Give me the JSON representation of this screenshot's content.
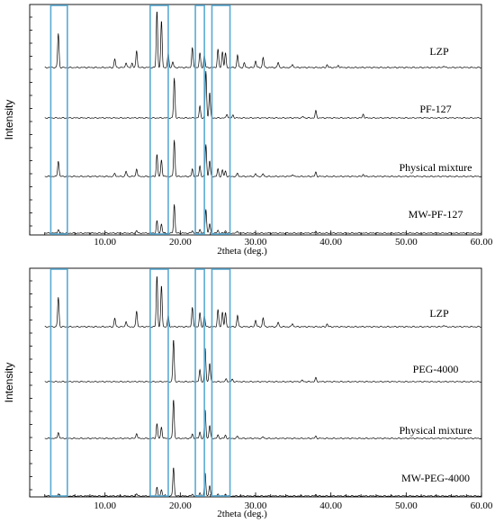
{
  "accent_color": "#5aaad2",
  "chart_data": [
    {
      "type": "line",
      "title": "",
      "xlabel": "2theta (deg.)",
      "ylabel": "Intensity",
      "xlim": [
        0,
        60
      ],
      "x_ticks": [
        "10.00",
        "20.00",
        "30.00",
        "40.00",
        "50.00",
        "60.00"
      ],
      "grid": false,
      "highlight_ranges_2theta": [
        [
          2.8,
          5.0
        ],
        [
          16.0,
          18.4
        ],
        [
          22.0,
          23.2
        ],
        [
          24.2,
          26.6
        ]
      ],
      "series": [
        {
          "name": "LZP",
          "peaks": [
            {
              "x": 3.8,
              "y": 0.6
            },
            {
              "x": 11.3,
              "y": 0.15
            },
            {
              "x": 12.8,
              "y": 0.09
            },
            {
              "x": 13.6,
              "y": 0.08
            },
            {
              "x": 14.2,
              "y": 0.3
            },
            {
              "x": 16.9,
              "y": 1.0
            },
            {
              "x": 17.5,
              "y": 0.82
            },
            {
              "x": 18.4,
              "y": 0.25
            },
            {
              "x": 19.0,
              "y": 0.1
            },
            {
              "x": 21.6,
              "y": 0.35
            },
            {
              "x": 22.6,
              "y": 0.25
            },
            {
              "x": 23.2,
              "y": 0.22
            },
            {
              "x": 25.0,
              "y": 0.32
            },
            {
              "x": 25.6,
              "y": 0.28
            },
            {
              "x": 26.0,
              "y": 0.25
            },
            {
              "x": 27.6,
              "y": 0.22
            },
            {
              "x": 28.5,
              "y": 0.08
            },
            {
              "x": 30.0,
              "y": 0.12
            },
            {
              "x": 31.0,
              "y": 0.18
            },
            {
              "x": 33.0,
              "y": 0.09
            },
            {
              "x": 34.9,
              "y": 0.06
            },
            {
              "x": 39.5,
              "y": 0.05
            },
            {
              "x": 41.0,
              "y": 0.04
            },
            {
              "x": 55.0,
              "y": 0.03
            }
          ]
        },
        {
          "name": "PF-127",
          "peaks": [
            {
              "x": 19.2,
              "y": 0.85
            },
            {
              "x": 22.6,
              "y": 0.25
            },
            {
              "x": 23.4,
              "y": 1.0
            },
            {
              "x": 23.9,
              "y": 0.55
            },
            {
              "x": 26.2,
              "y": 0.08
            },
            {
              "x": 27.0,
              "y": 0.06
            },
            {
              "x": 36.3,
              "y": 0.03
            },
            {
              "x": 38.0,
              "y": 0.15
            },
            {
              "x": 44.3,
              "y": 0.08
            }
          ]
        },
        {
          "name": "Physical mixture",
          "peaks": [
            {
              "x": 3.8,
              "y": 0.3
            },
            {
              "x": 11.3,
              "y": 0.06
            },
            {
              "x": 12.8,
              "y": 0.1
            },
            {
              "x": 14.2,
              "y": 0.15
            },
            {
              "x": 16.9,
              "y": 0.42
            },
            {
              "x": 17.5,
              "y": 0.32
            },
            {
              "x": 19.2,
              "y": 0.7
            },
            {
              "x": 21.6,
              "y": 0.14
            },
            {
              "x": 22.6,
              "y": 0.2
            },
            {
              "x": 23.4,
              "y": 0.62
            },
            {
              "x": 23.9,
              "y": 0.3
            },
            {
              "x": 25.0,
              "y": 0.14
            },
            {
              "x": 25.6,
              "y": 0.12
            },
            {
              "x": 26.0,
              "y": 0.1
            },
            {
              "x": 27.6,
              "y": 0.06
            },
            {
              "x": 30.0,
              "y": 0.05
            },
            {
              "x": 31.0,
              "y": 0.05
            },
            {
              "x": 34.9,
              "y": 0.04
            },
            {
              "x": 38.0,
              "y": 0.08
            },
            {
              "x": 44.3,
              "y": 0.04
            }
          ]
        },
        {
          "name": "MW-PF-127",
          "peaks": [
            {
              "x": 3.8,
              "y": 0.08
            },
            {
              "x": 14.2,
              "y": 0.06
            },
            {
              "x": 16.9,
              "y": 0.26
            },
            {
              "x": 17.5,
              "y": 0.2
            },
            {
              "x": 19.2,
              "y": 0.62
            },
            {
              "x": 21.6,
              "y": 0.05
            },
            {
              "x": 22.6,
              "y": 0.08
            },
            {
              "x": 23.4,
              "y": 0.52
            },
            {
              "x": 23.9,
              "y": 0.2
            },
            {
              "x": 25.0,
              "y": 0.06
            },
            {
              "x": 26.0,
              "y": 0.05
            },
            {
              "x": 27.6,
              "y": 0.04
            },
            {
              "x": 38.0,
              "y": 0.04
            }
          ]
        }
      ]
    },
    {
      "type": "line",
      "title": "",
      "xlabel": "2theta (deg.)",
      "ylabel": "Intensity",
      "xlim": [
        0,
        60
      ],
      "x_ticks": [
        "10.00",
        "20.00",
        "30.00",
        "40.00",
        "50.00",
        "60.00"
      ],
      "grid": false,
      "highlight_ranges_2theta": [
        [
          2.8,
          5.0
        ],
        [
          16.0,
          18.4
        ],
        [
          22.0,
          23.2
        ],
        [
          24.2,
          26.6
        ]
      ],
      "series": [
        {
          "name": "LZP",
          "peaks": [
            {
              "x": 3.8,
              "y": 0.52
            },
            {
              "x": 11.3,
              "y": 0.15
            },
            {
              "x": 12.8,
              "y": 0.1
            },
            {
              "x": 14.2,
              "y": 0.28
            },
            {
              "x": 16.9,
              "y": 0.9
            },
            {
              "x": 17.5,
              "y": 0.72
            },
            {
              "x": 18.4,
              "y": 0.2
            },
            {
              "x": 21.6,
              "y": 0.34
            },
            {
              "x": 22.6,
              "y": 0.24
            },
            {
              "x": 23.2,
              "y": 0.2
            },
            {
              "x": 25.0,
              "y": 0.3
            },
            {
              "x": 25.6,
              "y": 0.26
            },
            {
              "x": 26.0,
              "y": 0.24
            },
            {
              "x": 27.6,
              "y": 0.2
            },
            {
              "x": 30.0,
              "y": 0.12
            },
            {
              "x": 31.0,
              "y": 0.16
            },
            {
              "x": 33.0,
              "y": 0.08
            },
            {
              "x": 34.9,
              "y": 0.06
            },
            {
              "x": 39.5,
              "y": 0.05
            },
            {
              "x": 55.0,
              "y": 0.03
            }
          ]
        },
        {
          "name": "PEG-4000",
          "peaks": [
            {
              "x": 19.1,
              "y": 0.9
            },
            {
              "x": 22.6,
              "y": 0.25
            },
            {
              "x": 23.3,
              "y": 0.72
            },
            {
              "x": 23.9,
              "y": 0.4
            },
            {
              "x": 26.1,
              "y": 0.06
            },
            {
              "x": 26.9,
              "y": 0.05
            },
            {
              "x": 36.2,
              "y": 0.03
            },
            {
              "x": 38.0,
              "y": 0.08
            }
          ]
        },
        {
          "name": "Physical mixture",
          "peaks": [
            {
              "x": 3.8,
              "y": 0.12
            },
            {
              "x": 14.2,
              "y": 0.1
            },
            {
              "x": 16.9,
              "y": 0.28
            },
            {
              "x": 17.5,
              "y": 0.22
            },
            {
              "x": 19.1,
              "y": 0.75
            },
            {
              "x": 21.6,
              "y": 0.08
            },
            {
              "x": 22.6,
              "y": 0.12
            },
            {
              "x": 23.3,
              "y": 0.55
            },
            {
              "x": 23.9,
              "y": 0.25
            },
            {
              "x": 25.0,
              "y": 0.06
            },
            {
              "x": 26.0,
              "y": 0.06
            },
            {
              "x": 27.6,
              "y": 0.04
            },
            {
              "x": 31.0,
              "y": 0.03
            },
            {
              "x": 38.0,
              "y": 0.04
            }
          ]
        },
        {
          "name": "MW-PEG-4000",
          "peaks": [
            {
              "x": 3.8,
              "y": 0.05
            },
            {
              "x": 14.2,
              "y": 0.05
            },
            {
              "x": 16.9,
              "y": 0.18
            },
            {
              "x": 17.5,
              "y": 0.14
            },
            {
              "x": 19.1,
              "y": 0.62
            },
            {
              "x": 21.6,
              "y": 0.04
            },
            {
              "x": 22.6,
              "y": 0.07
            },
            {
              "x": 23.3,
              "y": 0.5
            },
            {
              "x": 23.9,
              "y": 0.22
            },
            {
              "x": 25.0,
              "y": 0.04
            },
            {
              "x": 26.0,
              "y": 0.04
            },
            {
              "x": 38.0,
              "y": 0.03
            }
          ]
        }
      ]
    }
  ]
}
